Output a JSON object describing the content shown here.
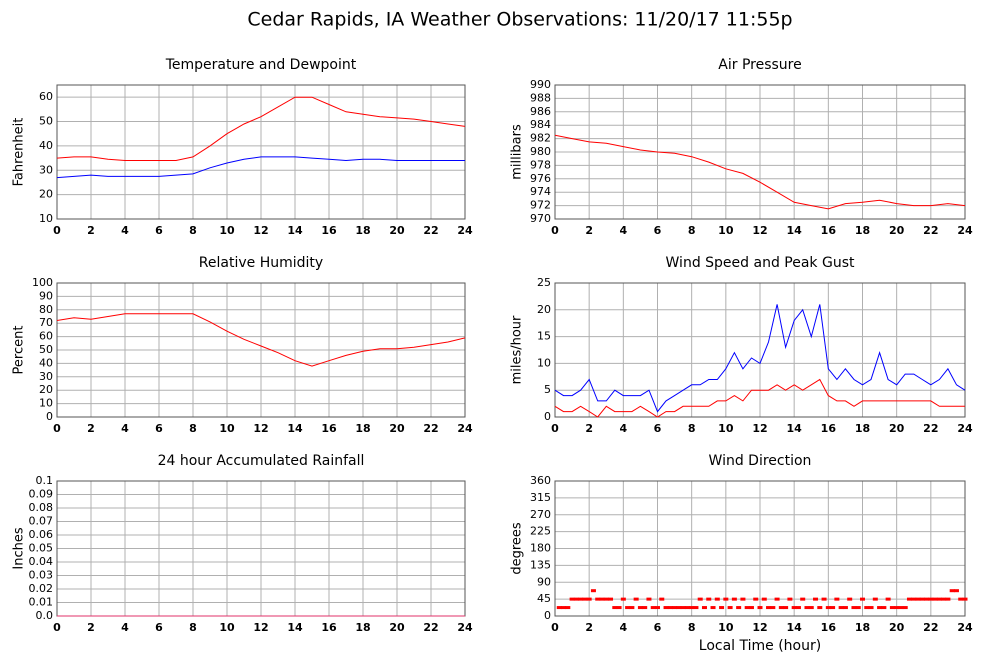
{
  "title": "Cedar Rapids, IA Weather Observations: 11/20/17 11:55p",
  "chart_data": [
    {
      "type": "line",
      "title": "Temperature and Dewpoint",
      "ylabel": "Fahrenheit",
      "xlim": [
        0,
        24
      ],
      "xticks": [
        0,
        2,
        4,
        6,
        8,
        10,
        12,
        14,
        16,
        18,
        20,
        22,
        24
      ],
      "ylim": [
        10,
        65
      ],
      "yticks": [
        10,
        20,
        30,
        40,
        50,
        60
      ],
      "grid": true,
      "x": [
        0,
        1,
        2,
        3,
        4,
        5,
        6,
        7,
        8,
        9,
        10,
        11,
        12,
        13,
        14,
        15,
        16,
        17,
        18,
        19,
        20,
        21,
        22,
        23,
        24
      ],
      "series": [
        {
          "color": "#ff0000",
          "values": [
            35,
            35.5,
            35.5,
            34.5,
            34,
            34,
            34,
            34,
            35.5,
            40,
            45,
            49,
            52,
            56,
            60,
            60,
            57,
            54,
            53,
            52,
            51.5,
            51,
            50,
            49,
            48
          ]
        },
        {
          "color": "#0000ff",
          "values": [
            27,
            27.5,
            28,
            27.5,
            27.5,
            27.5,
            27.5,
            28,
            28.5,
            31,
            33,
            34.5,
            35.5,
            35.5,
            35.5,
            35,
            34.5,
            34,
            34.5,
            34.5,
            34,
            34,
            34,
            34,
            34
          ]
        }
      ]
    },
    {
      "type": "line",
      "title": "Air Pressure",
      "ylabel": "millibars",
      "xlim": [
        0,
        24
      ],
      "xticks": [
        0,
        2,
        4,
        6,
        8,
        10,
        12,
        14,
        16,
        18,
        20,
        22,
        24
      ],
      "ylim": [
        970,
        990
      ],
      "yticks": [
        970,
        972,
        974,
        976,
        978,
        980,
        982,
        984,
        986,
        988,
        990
      ],
      "grid": true,
      "x": [
        0,
        1,
        2,
        3,
        4,
        5,
        6,
        7,
        8,
        9,
        10,
        11,
        12,
        13,
        14,
        15,
        16,
        17,
        18,
        19,
        20,
        21,
        22,
        23,
        24
      ],
      "series": [
        {
          "color": "#ff0000",
          "values": [
            982.5,
            982,
            981.5,
            981.3,
            980.8,
            980.3,
            980,
            979.8,
            979.3,
            978.5,
            977.5,
            976.8,
            975.5,
            974,
            972.5,
            972,
            971.5,
            972.3,
            972.5,
            972.8,
            972.3,
            972,
            972,
            972.3,
            972
          ]
        }
      ]
    },
    {
      "type": "line",
      "title": "Relative Humidity",
      "ylabel": "Percent",
      "xlim": [
        0,
        24
      ],
      "xticks": [
        0,
        2,
        4,
        6,
        8,
        10,
        12,
        14,
        16,
        18,
        20,
        22,
        24
      ],
      "ylim": [
        0,
        100
      ],
      "yticks": [
        0,
        10,
        20,
        30,
        40,
        50,
        60,
        70,
        80,
        90,
        100
      ],
      "grid": true,
      "x": [
        0,
        1,
        2,
        3,
        4,
        5,
        6,
        7,
        8,
        9,
        10,
        11,
        12,
        13,
        14,
        15,
        16,
        17,
        18,
        19,
        20,
        21,
        22,
        23,
        24
      ],
      "series": [
        {
          "color": "#ff0000",
          "values": [
            72,
            74,
            73,
            75,
            77,
            77,
            77,
            77,
            77,
            71,
            64,
            58,
            53,
            48,
            42,
            38,
            42,
            46,
            49,
            51,
            51,
            52,
            54,
            56,
            59
          ]
        }
      ]
    },
    {
      "type": "line",
      "title": "Wind Speed and Peak Gust",
      "ylabel": "miles/hour",
      "xlim": [
        0,
        24
      ],
      "xticks": [
        0,
        2,
        4,
        6,
        8,
        10,
        12,
        14,
        16,
        18,
        20,
        22,
        24
      ],
      "ylim": [
        0,
        25
      ],
      "yticks": [
        0,
        5,
        10,
        15,
        20,
        25
      ],
      "grid": true,
      "x": [
        0,
        0.5,
        1,
        1.5,
        2,
        2.5,
        3,
        3.5,
        4,
        4.5,
        5,
        5.5,
        6,
        6.5,
        7,
        7.5,
        8,
        8.5,
        9,
        9.5,
        10,
        10.5,
        11,
        11.5,
        12,
        12.5,
        13,
        13.5,
        14,
        14.5,
        15,
        15.5,
        16,
        16.5,
        17,
        17.5,
        18,
        18.5,
        19,
        19.5,
        20,
        20.5,
        21,
        21.5,
        22,
        22.5,
        23,
        23.5,
        24
      ],
      "series": [
        {
          "color": "#0000ff",
          "values": [
            5,
            4,
            4,
            5,
            7,
            3,
            3,
            5,
            4,
            4,
            4,
            5,
            1,
            3,
            4,
            5,
            6,
            6,
            7,
            7,
            9,
            12,
            9,
            11,
            10,
            14,
            21,
            13,
            18,
            20,
            15,
            21,
            9,
            7,
            9,
            7,
            6,
            7,
            12,
            7,
            6,
            8,
            8,
            7,
            6,
            7,
            9,
            6,
            5
          ]
        },
        {
          "color": "#ff0000",
          "values": [
            2,
            1,
            1,
            2,
            1,
            0,
            2,
            1,
            1,
            1,
            2,
            1,
            0,
            1,
            1,
            2,
            2,
            2,
            2,
            3,
            3,
            4,
            3,
            5,
            5,
            5,
            6,
            5,
            6,
            5,
            6,
            7,
            4,
            3,
            3,
            2,
            3,
            3,
            3,
            3,
            3,
            3,
            3,
            3,
            3,
            2,
            2,
            2,
            2
          ]
        }
      ]
    },
    {
      "type": "line",
      "title": "24 hour Accumulated Rainfall",
      "ylabel": "Inches",
      "xlim": [
        0,
        24
      ],
      "xticks": [
        0,
        2,
        4,
        6,
        8,
        10,
        12,
        14,
        16,
        18,
        20,
        22,
        24
      ],
      "ylim": [
        0,
        0.1
      ],
      "yticks": [
        {
          "value": 0,
          "label": "0.0"
        },
        0.01,
        0.02,
        0.03,
        0.04,
        0.05,
        0.06,
        0.07,
        0.08,
        0.09,
        0.1
      ],
      "grid": true,
      "x": [
        0,
        1,
        2,
        3,
        4,
        5,
        6,
        7,
        8,
        9,
        10,
        11,
        12,
        13,
        14,
        15,
        16,
        17,
        18,
        19,
        20,
        21,
        22,
        23,
        24
      ],
      "series": [
        {
          "color": "#e0306a",
          "values": [
            0,
            0,
            0,
            0,
            0,
            0,
            0,
            0,
            0,
            0,
            0,
            0,
            0,
            0,
            0,
            0,
            0,
            0,
            0,
            0,
            0,
            0,
            0,
            0,
            0
          ]
        }
      ]
    },
    {
      "type": "scatter",
      "title": "Wind Direction",
      "ylabel": "degrees",
      "xlabel": "Local Time (hour)",
      "xlim": [
        0,
        24
      ],
      "xticks": [
        0,
        2,
        4,
        6,
        8,
        10,
        12,
        14,
        16,
        18,
        20,
        22,
        24
      ],
      "ylim": [
        0,
        360
      ],
      "yticks": [
        0,
        45,
        90,
        135,
        180,
        225,
        270,
        315,
        360
      ],
      "grid": true,
      "x": [
        0.25,
        0.5,
        0.75,
        1,
        1.25,
        1.5,
        1.75,
        2,
        2.25,
        2.5,
        2.75,
        3,
        3.25,
        3.5,
        3.75,
        4,
        4.25,
        4.5,
        4.75,
        5,
        5.25,
        5.5,
        5.75,
        6,
        6.25,
        6.5,
        6.75,
        7,
        7.25,
        7.5,
        7.75,
        8,
        8.25,
        8.5,
        8.75,
        9,
        9.25,
        9.5,
        9.75,
        10,
        10.25,
        10.5,
        10.75,
        11,
        11.25,
        11.5,
        11.75,
        12,
        12.25,
        12.5,
        12.75,
        13,
        13.25,
        13.5,
        13.75,
        14,
        14.25,
        14.5,
        14.75,
        15,
        15.25,
        15.5,
        15.75,
        16,
        16.25,
        16.5,
        16.75,
        17,
        17.25,
        17.5,
        17.75,
        18,
        18.25,
        18.5,
        18.75,
        19,
        19.25,
        19.5,
        19.75,
        20,
        20.25,
        20.5,
        20.75,
        21,
        21.25,
        21.5,
        21.75,
        22,
        22.25,
        22.5,
        22.75,
        23,
        23.25,
        23.5,
        23.75,
        24
      ],
      "series": [
        {
          "color": "#ff0000",
          "values": [
            22.5,
            22.5,
            22.5,
            45,
            45,
            45,
            45,
            45,
            67.5,
            45,
            45,
            45,
            45,
            22.5,
            22.5,
            45,
            22.5,
            22.5,
            45,
            22.5,
            22.5,
            45,
            22.5,
            22.5,
            45,
            22.5,
            22.5,
            22.5,
            22.5,
            22.5,
            22.5,
            22.5,
            22.5,
            45,
            22.5,
            45,
            22.5,
            45,
            22.5,
            45,
            22.5,
            45,
            22.5,
            45,
            22.5,
            22.5,
            45,
            22.5,
            45,
            22.5,
            22.5,
            45,
            22.5,
            22.5,
            45,
            22.5,
            22.5,
            45,
            22.5,
            22.5,
            45,
            22.5,
            45,
            22.5,
            22.5,
            45,
            22.5,
            22.5,
            45,
            22.5,
            22.5,
            45,
            22.5,
            22.5,
            45,
            22.5,
            22.5,
            45,
            22.5,
            22.5,
            22.5,
            22.5,
            45,
            45,
            45,
            45,
            45,
            45,
            45,
            45,
            45,
            45,
            67.5,
            67.5,
            45,
            45
          ]
        }
      ]
    }
  ]
}
